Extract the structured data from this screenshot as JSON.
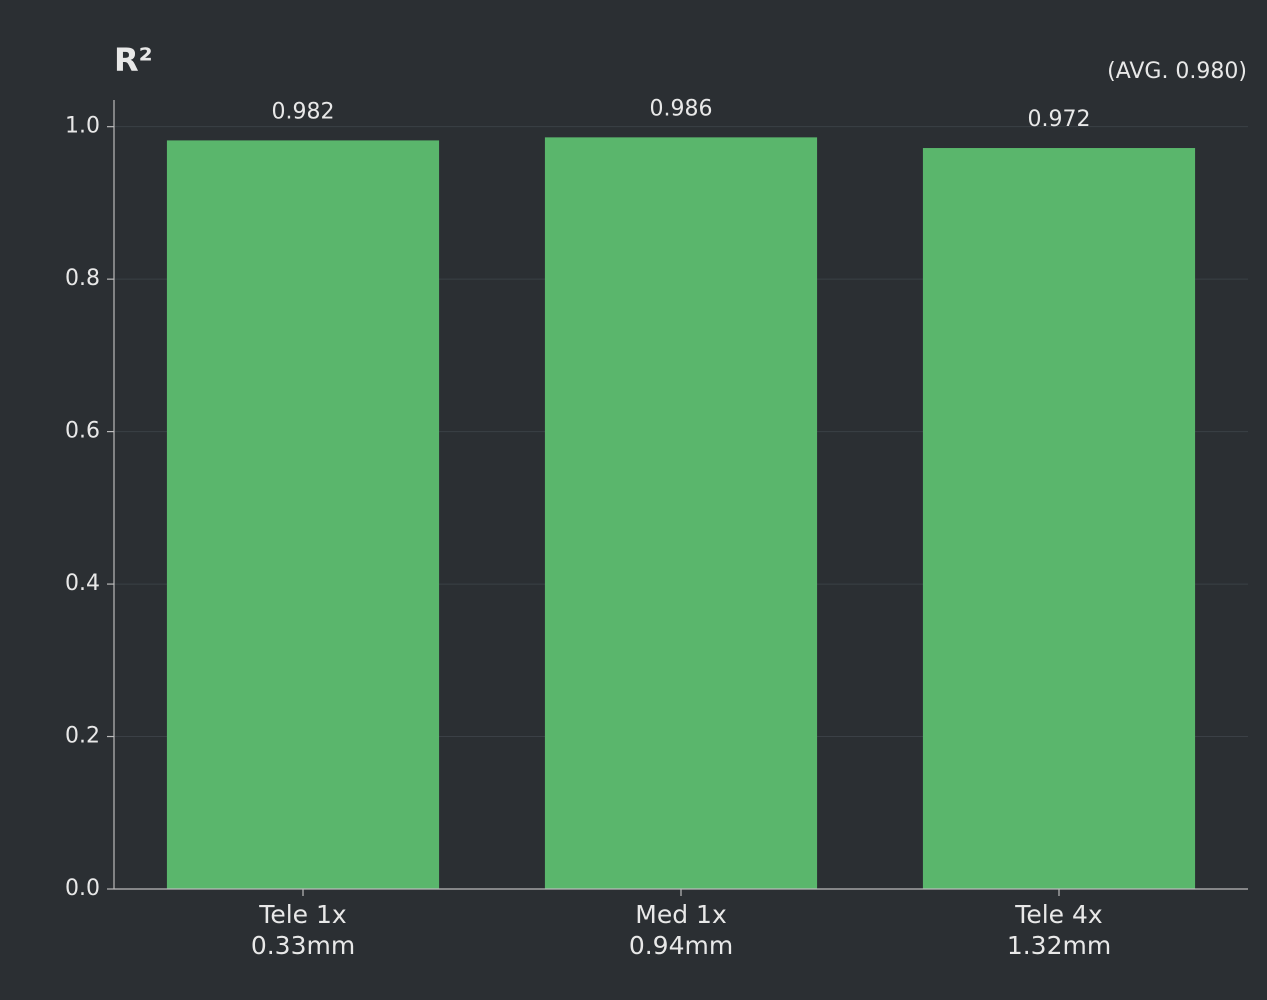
{
  "chart_data": {
    "type": "bar",
    "title": "R²",
    "annotation": "(AVG. 0.980)",
    "categories": [
      [
        "Tele 1x",
        "0.33mm"
      ],
      [
        "Med 1x",
        "0.94mm"
      ],
      [
        "Tele 4x",
        "1.32mm"
      ]
    ],
    "values": [
      0.982,
      0.986,
      0.972
    ],
    "color": "#5ab66c",
    "ylim": [
      0,
      1.035
    ],
    "yticks": [
      {
        "value": 0,
        "label": "0.0"
      },
      0.2,
      0.4,
      0.6,
      0.8,
      {
        "value": 1,
        "label": "1.0"
      }
    ],
    "grid": true
  }
}
